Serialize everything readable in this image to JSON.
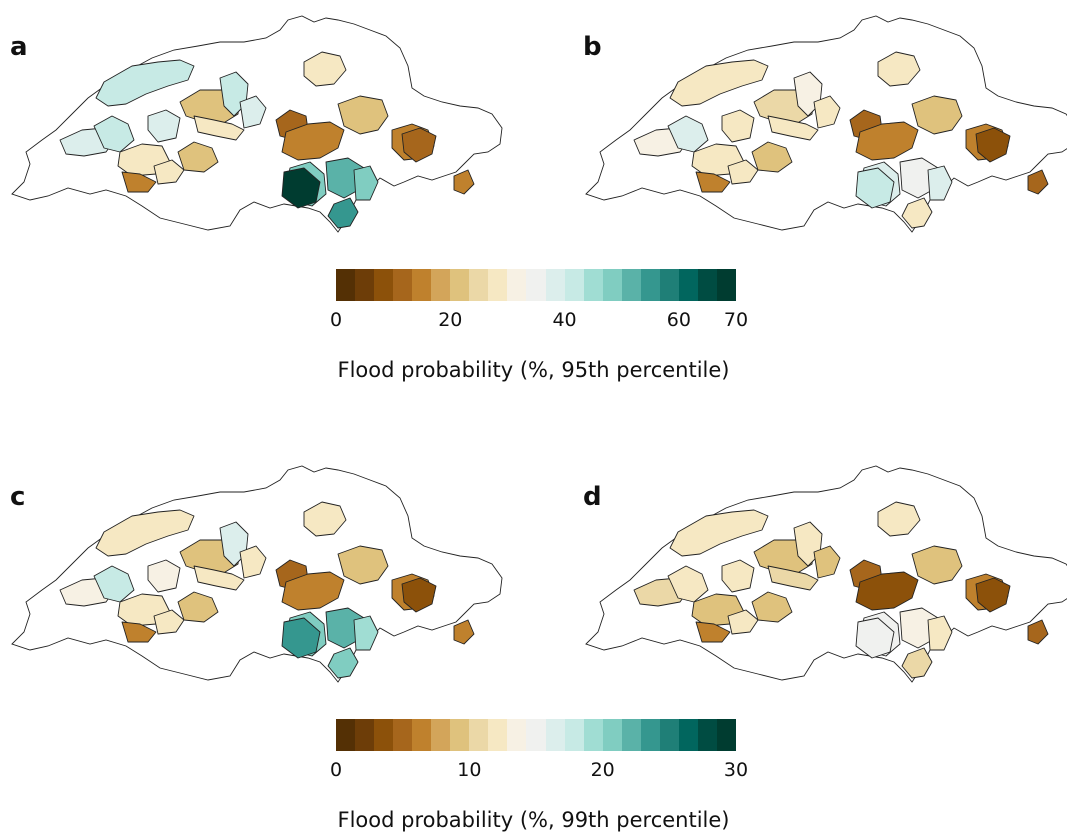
{
  "panels": {
    "a": {
      "label": "a"
    },
    "b": {
      "label": "b"
    },
    "c": {
      "label": "c"
    },
    "d": {
      "label": "d"
    }
  },
  "colorbar95": {
    "title": "Flood probability (%, 95th percentile)",
    "ticks": [
      "0",
      "20",
      "40",
      "60",
      "70"
    ],
    "range": [
      0,
      70
    ]
  },
  "colorbar99": {
    "title": "Flood probability (%, 99th percentile)",
    "ticks": [
      "0",
      "10",
      "20",
      "30"
    ],
    "range": [
      0,
      30
    ]
  },
  "palette": [
    "#543005",
    "#6d3d08",
    "#8c510a",
    "#a6661c",
    "#bf812d",
    "#d3a55a",
    "#dfc27d",
    "#ebd8a7",
    "#f6e8c3",
    "#f7f1e4",
    "#f0f1ef",
    "#dceeec",
    "#c7eae5",
    "#a0ddd3",
    "#80cdc1",
    "#5ab2a8",
    "#35978f",
    "#1f7f77",
    "#01665e",
    "#004c42",
    "#003c30"
  ],
  "map_fills": {
    "a": [
      "c7eae5",
      "dceeec",
      "c7eae5",
      "f6e8c3",
      "dfc27d",
      "c7eae5",
      "dceeec",
      "dceeec",
      "f6e8c3",
      "dfc27d",
      "f6e8c3",
      "bf812d",
      "a6661c",
      "bf812d",
      "dfc27d",
      "f6e8c3",
      "bf812d",
      "80cdc1",
      "5ab2a8",
      "003c30",
      "35978f",
      "80cdc1",
      "a6661c",
      "bf812d"
    ],
    "b": [
      "f6e8c3",
      "f7f1e4",
      "dceeec",
      "f6e8c3",
      "ebd8a7",
      "f7f1e4",
      "f6e8c3",
      "f6e8c3",
      "f6e8c3",
      "dfc27d",
      "f6e8c3",
      "bf812d",
      "a6661c",
      "bf812d",
      "dfc27d",
      "f6e8c3",
      "bf812d",
      "dceeec",
      "f0f1ef",
      "c7eae5",
      "f6e8c3",
      "dceeec",
      "8c510a",
      "a6661c"
    ],
    "c": [
      "f6e8c3",
      "f7f1e4",
      "c7eae5",
      "f6e8c3",
      "dfc27d",
      "dceeec",
      "f7f1e4",
      "f6e8c3",
      "f6e8c3",
      "dfc27d",
      "f6e8c3",
      "bf812d",
      "a6661c",
      "bf812d",
      "dfc27d",
      "f6e8c3",
      "bf812d",
      "80cdc1",
      "5ab2a8",
      "35978f",
      "80cdc1",
      "a0ddd3",
      "8c510a",
      "bf812d"
    ],
    "d": [
      "f6e8c3",
      "ebd8a7",
      "f6e8c3",
      "dfc27d",
      "dfc27d",
      "f6e8c3",
      "f6e8c3",
      "dfc27d",
      "ebd8a7",
      "dfc27d",
      "f6e8c3",
      "bf812d",
      "a6661c",
      "8c510a",
      "dfc27d",
      "f6e8c3",
      "bf812d",
      "f0f1ef",
      "f7f1e4",
      "f0f1ef",
      "ebd8a7",
      "f6e8c3",
      "8c510a",
      "a6661c"
    ]
  }
}
